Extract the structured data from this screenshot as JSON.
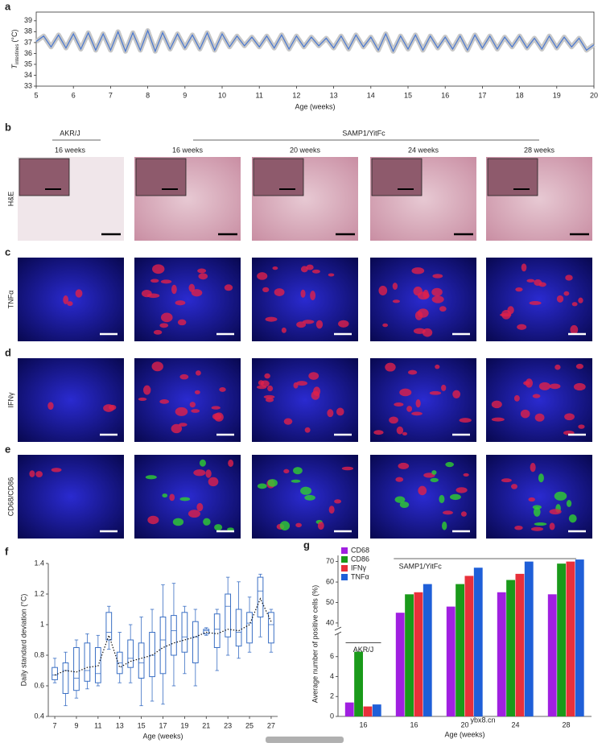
{
  "chart_data": [
    {
      "type": "line",
      "panel": "a",
      "xlabel": "Age (weeks)",
      "ylabel": "T",
      "ylabel_sub": "intestines",
      "ylabel_unit": "(°C)",
      "xlim": [
        5,
        20
      ],
      "xticks": [
        5,
        6,
        7,
        8,
        9,
        10,
        11,
        12,
        13,
        14,
        15,
        16,
        17,
        18,
        19,
        20
      ],
      "ylim": [
        33,
        39.8
      ],
      "yticks": [
        33,
        34,
        35,
        36,
        37,
        38,
        39
      ],
      "x": [
        5,
        5.2,
        5.4,
        5.6,
        5.8,
        6,
        6.2,
        6.4,
        6.6,
        6.8,
        7,
        7.2,
        7.4,
        7.6,
        7.8,
        8,
        8.2,
        8.4,
        8.6,
        8.8,
        9,
        9.2,
        9.4,
        9.6,
        9.8,
        10,
        10.2,
        10.4,
        10.6,
        10.8,
        11,
        11.2,
        11.4,
        11.6,
        11.8,
        12,
        12.2,
        12.4,
        12.6,
        12.8,
        13,
        13.2,
        13.4,
        13.6,
        13.8,
        14,
        14.2,
        14.4,
        14.6,
        14.8,
        15,
        15.2,
        15.4,
        15.6,
        15.8,
        16,
        16.2,
        16.4,
        16.6,
        16.8,
        17,
        17.2,
        17.4,
        17.6,
        17.8,
        18,
        18.2,
        18.4,
        18.6,
        18.8,
        19,
        19.2,
        19.4,
        19.6,
        19.8,
        20
      ],
      "series": [
        {
          "color": "#4a78d0",
          "values": [
            37.1,
            37.6,
            36.6,
            37.7,
            36.5,
            37.8,
            36.4,
            37.9,
            36.3,
            37.8,
            36.3,
            38.0,
            36.2,
            37.9,
            36.3,
            38.1,
            36.2,
            37.9,
            36.4,
            37.8,
            36.5,
            37.7,
            36.4,
            37.9,
            36.3,
            37.8,
            36.6,
            37.6,
            36.7,
            37.5,
            36.6,
            37.6,
            36.5,
            37.7,
            36.4,
            37.6,
            36.6,
            37.5,
            36.7,
            37.4,
            36.5,
            37.6,
            36.4,
            37.7,
            36.6,
            37.5,
            36.3,
            37.8,
            36.2,
            37.6,
            36.4,
            37.7,
            36.3,
            37.6,
            36.5,
            37.5,
            36.4,
            37.6,
            36.3,
            37.7,
            36.5,
            37.6,
            36.4,
            37.5,
            36.6,
            37.6,
            36.5,
            37.4,
            36.4,
            37.6,
            36.5,
            37.5,
            36.6,
            37.4,
            36.3,
            36.8
          ]
        }
      ]
    },
    {
      "type": "box",
      "panel": "f",
      "xlabel": "Age (weeks)",
      "ylabel": "Daily standard deviation (°C)",
      "color": "#3a6fc4",
      "xlim": [
        6.4,
        27.6
      ],
      "xticks": [
        7,
        9,
        11,
        13,
        15,
        17,
        19,
        21,
        23,
        25,
        27
      ],
      "ylim": [
        0.4,
        1.4
      ],
      "yticks": [
        0.4,
        0.6,
        0.8,
        1.0,
        1.2,
        1.4
      ],
      "x": [
        7,
        8,
        9,
        10,
        11,
        12,
        13,
        14,
        15,
        16,
        17,
        18,
        19,
        20,
        21,
        22,
        23,
        24,
        25,
        26,
        27
      ],
      "boxes": [
        {
          "min": 0.62,
          "q1": 0.64,
          "median": 0.67,
          "q3": 0.72,
          "max": 0.78
        },
        {
          "min": 0.47,
          "q1": 0.55,
          "median": 0.7,
          "q3": 0.75,
          "max": 0.82
        },
        {
          "min": 0.52,
          "q1": 0.57,
          "median": 0.65,
          "q3": 0.85,
          "max": 0.9
        },
        {
          "min": 0.58,
          "q1": 0.63,
          "median": 0.7,
          "q3": 0.88,
          "max": 0.94
        },
        {
          "min": 0.6,
          "q1": 0.62,
          "median": 0.68,
          "q3": 0.85,
          "max": 0.93
        },
        {
          "min": 0.84,
          "q1": 0.9,
          "median": 0.95,
          "q3": 1.08,
          "max": 1.12
        },
        {
          "min": 0.62,
          "q1": 0.68,
          "median": 0.75,
          "q3": 0.82,
          "max": 0.95
        },
        {
          "min": 0.62,
          "q1": 0.72,
          "median": 0.78,
          "q3": 0.9,
          "max": 1.0
        },
        {
          "min": 0.47,
          "q1": 0.65,
          "median": 0.75,
          "q3": 0.88,
          "max": 1.05
        },
        {
          "min": 0.5,
          "q1": 0.66,
          "median": 0.8,
          "q3": 0.95,
          "max": 1.1
        },
        {
          "min": 0.48,
          "q1": 0.68,
          "median": 0.9,
          "q3": 1.05,
          "max": 1.26
        },
        {
          "min": 0.6,
          "q1": 0.8,
          "median": 0.96,
          "q3": 1.06,
          "max": 1.27
        },
        {
          "min": 0.68,
          "q1": 0.82,
          "median": 0.92,
          "q3": 1.08,
          "max": 1.12
        },
        {
          "min": 0.6,
          "q1": 0.75,
          "median": 0.92,
          "q3": 1.02,
          "max": 1.1
        },
        {
          "min": 0.93,
          "q1": 0.94,
          "median": 0.96,
          "q3": 0.97,
          "max": 0.98
        },
        {
          "min": 0.7,
          "q1": 0.85,
          "median": 0.97,
          "q3": 1.07,
          "max": 1.1
        },
        {
          "min": 0.8,
          "q1": 0.92,
          "median": 1.12,
          "q3": 1.2,
          "max": 1.31
        },
        {
          "min": 0.78,
          "q1": 0.86,
          "median": 0.95,
          "q3": 1.1,
          "max": 1.28
        },
        {
          "min": 0.82,
          "q1": 0.88,
          "median": 1.01,
          "q3": 1.08,
          "max": 1.18
        },
        {
          "min": 0.92,
          "q1": 1.05,
          "median": 1.22,
          "q3": 1.31,
          "max": 1.33
        },
        {
          "min": 0.82,
          "q1": 0.88,
          "median": 1.0,
          "q3": 1.08,
          "max": 1.1
        }
      ],
      "mean": [
        0.67,
        0.7,
        0.69,
        0.72,
        0.73,
        0.93,
        0.72,
        0.76,
        0.78,
        0.8,
        0.85,
        0.88,
        0.9,
        0.92,
        0.95,
        0.94,
        0.97,
        0.96,
        1.0,
        1.17,
        1.02
      ]
    },
    {
      "type": "bar",
      "panel": "g",
      "xlabel": "Age (weeks)",
      "ylabel": "Average number of positive cells (%)",
      "categories": [
        "16",
        "16",
        "20",
        "24",
        "28"
      ],
      "groups": [
        "AKR/J",
        "SAMP1/YitFc"
      ],
      "ylim_lower": [
        0,
        8
      ],
      "yticks_lower": [
        0,
        2,
        4,
        6
      ],
      "ylim_upper": [
        38,
        73
      ],
      "yticks_upper": [
        40,
        50,
        60,
        70
      ],
      "series": [
        {
          "name": "CD68",
          "color": "#a020e0",
          "values": [
            1.4,
            45,
            48,
            55,
            54
          ]
        },
        {
          "name": "CD86",
          "color": "#1a9a1a",
          "values": [
            6.5,
            54,
            59,
            61,
            69
          ]
        },
        {
          "name": "IFNγ",
          "color": "#e8303a",
          "values": [
            1.0,
            55,
            63,
            64,
            70
          ]
        },
        {
          "name": "TNFα",
          "color": "#1f5fd8",
          "values": [
            1.2,
            59,
            67,
            70,
            71
          ]
        }
      ]
    }
  ],
  "image_grid": {
    "groups": [
      "AKR/J",
      "SAMP1/YitFc"
    ],
    "ages": [
      "16 weeks",
      "16 weeks",
      "20 weeks",
      "24 weeks",
      "28 weeks"
    ],
    "rows": [
      {
        "panel": "b",
        "label": "H&E"
      },
      {
        "panel": "c",
        "label": "TNFα"
      },
      {
        "panel": "d",
        "label": "IFNγ"
      },
      {
        "panel": "e",
        "label": "CD68/CD86"
      }
    ]
  },
  "watermark": "ybx8.cn"
}
